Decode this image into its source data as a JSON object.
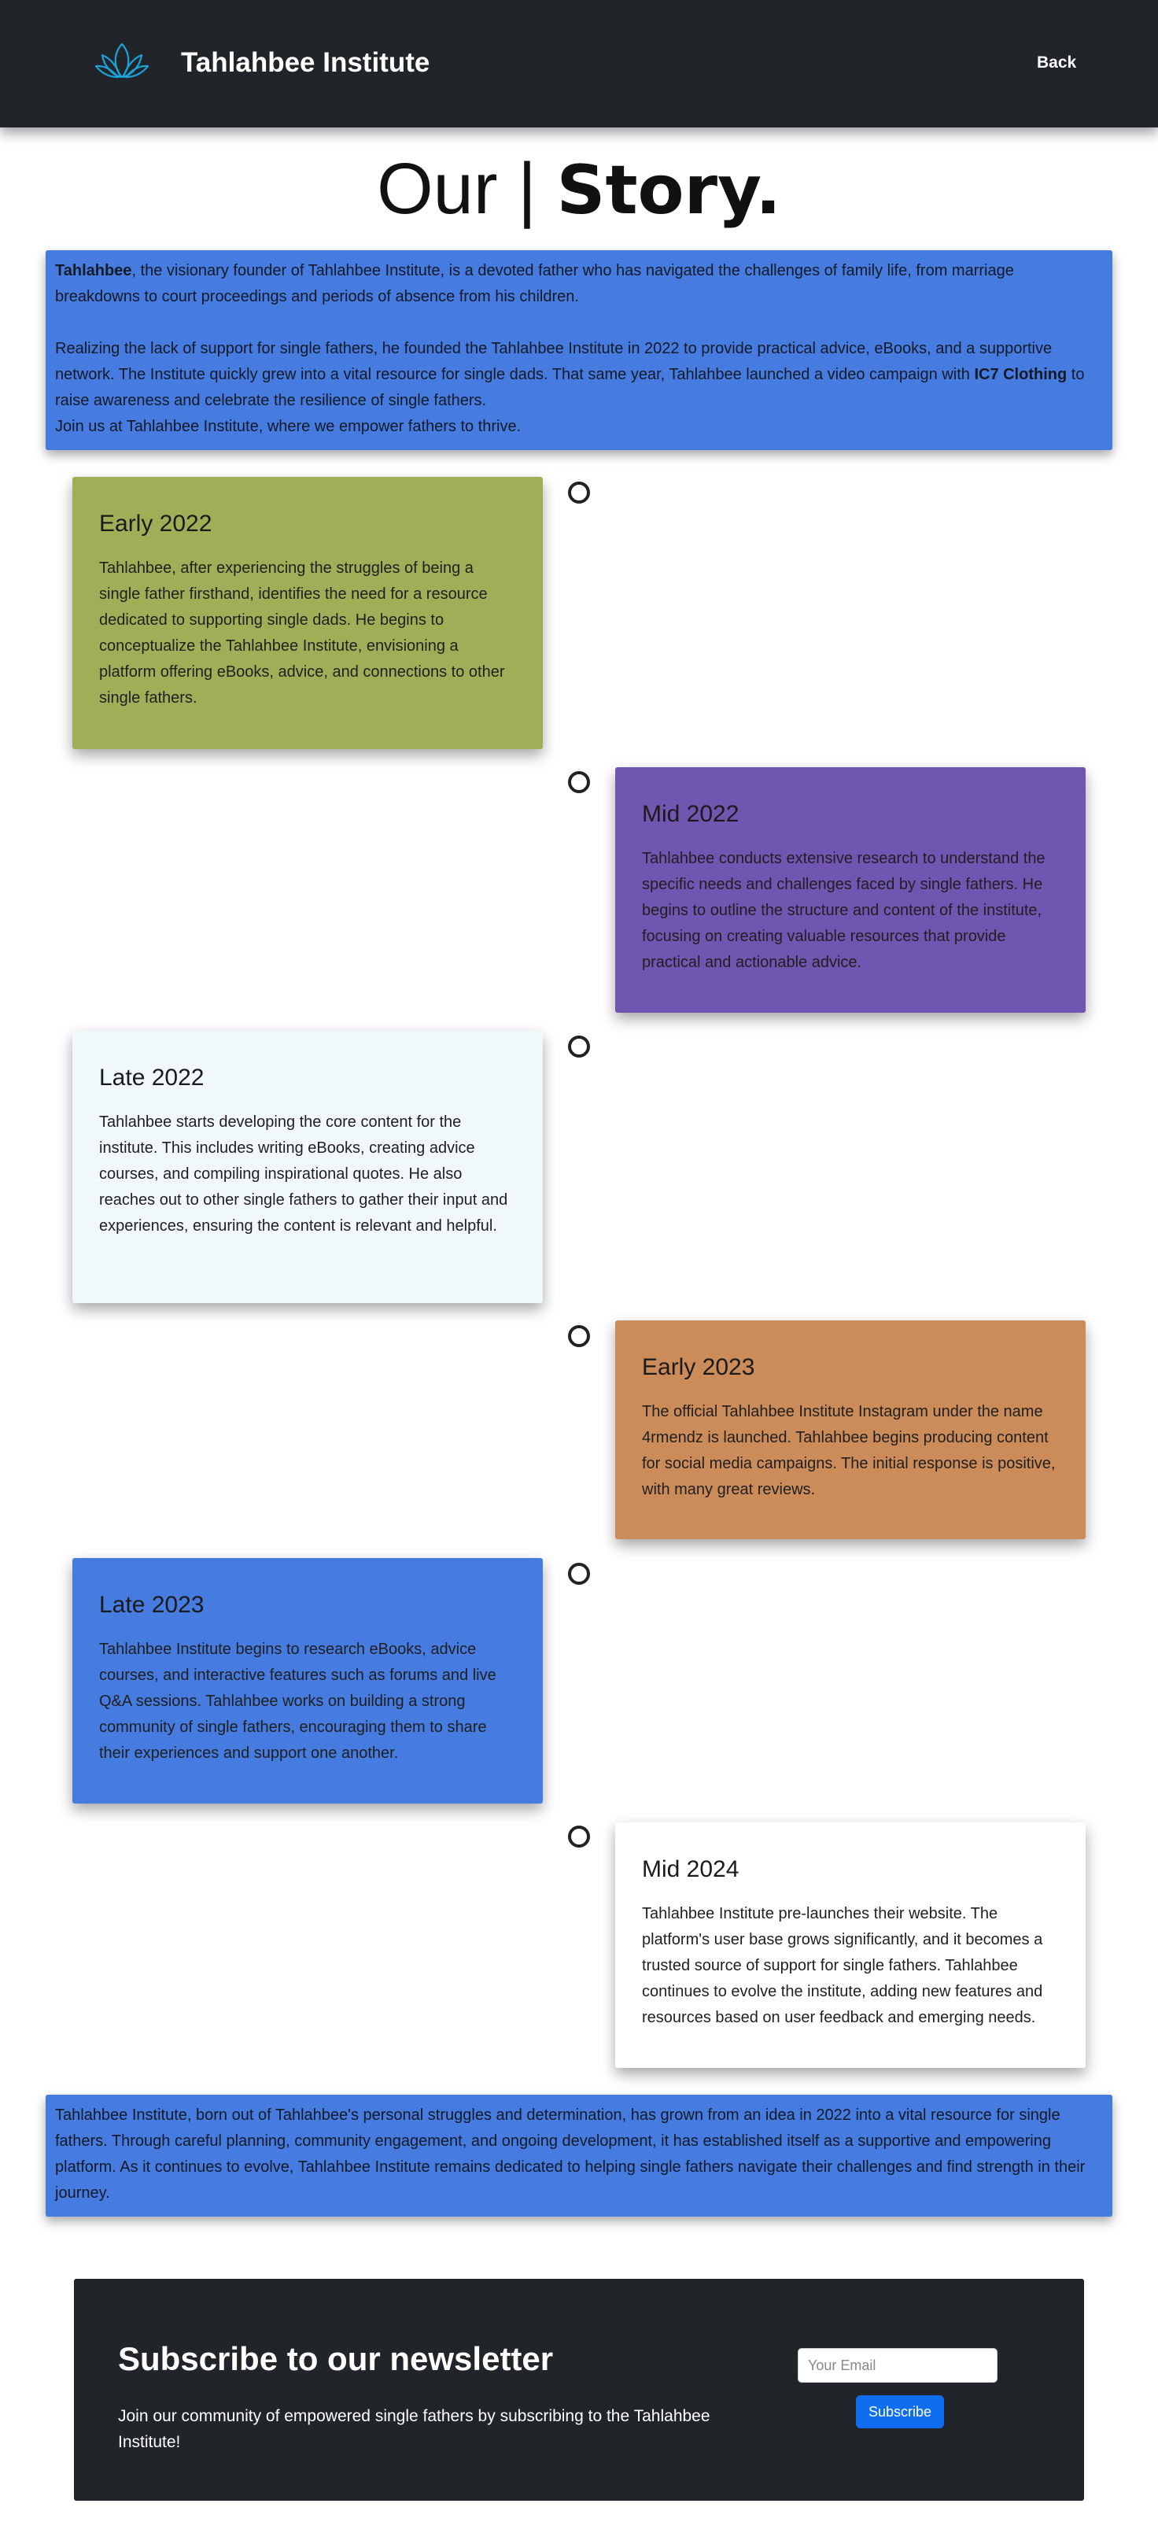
{
  "header": {
    "brand": "Tahlahbee Institute",
    "back_label": "Back",
    "logo_icon": "lotus-icon",
    "logo_color": "#1aa3d9"
  },
  "title": {
    "light": "Our | ",
    "bold": "Story."
  },
  "intro": {
    "founder_name": "Tahlahbee",
    "p1_rest": ", the visionary founder of Tahlahbee Institute, is a devoted father who has navigated the challenges of family life, from marriage breakdowns to court proceedings and periods of absence from his children.",
    "p2_start": "Realizing the lack of support for single fathers, he founded the Tahlahbee Institute in 2022 to provide practical advice, eBooks, and a supportive network. The Institute quickly grew into a vital resource for single dads. That same year, Tahlahbee launched a video campaign with ",
    "p2_brand": "IC7 Clothing",
    "p2_end": " to raise awareness and celebrate the resilience of single fathers.",
    "p3": "Join us at Tahlahbee Institute, where we empower fathers to thrive."
  },
  "timeline": [
    {
      "period": "Early 2022",
      "color": "#a1ae58",
      "text": "Tahlahbee, after experiencing the struggles of being a single father firsthand, identifies the need for a resource dedicated to supporting single dads. He begins to conceptualize the Tahlahbee Institute, envisioning a platform offering eBooks, advice, and connections to other single fathers."
    },
    {
      "period": "Mid 2022",
      "color": "#7055b1",
      "text": "Tahlahbee conducts extensive research to understand the specific needs and challenges faced by single fathers. He begins to outline the structure and content of the institute, focusing on creating valuable resources that provide practical and actionable advice."
    },
    {
      "period": "Late 2022",
      "color": "#f1f8fc",
      "text": "Tahlahbee starts developing the core content for the institute. This includes writing eBooks, creating advice courses, and compiling inspirational quotes. He also reaches out to other single fathers to gather their input and experiences, ensuring the content is relevant and helpful."
    },
    {
      "period": "Early 2023",
      "color": "#cb8c5a",
      "text": "The official Tahlahbee Institute Instagram under the name 4rmendz is launched. Tahlahbee begins producing content for social media campaigns. The initial response is positive, with many great reviews."
    },
    {
      "period": "Late 2023",
      "color": "#467be0",
      "text": "Tahlahbee Institute begins to research eBooks, advice courses, and interactive features such as forums and live Q&A sessions. Tahlahbee works on building a strong community of single fathers, encouraging them to share their experiences and support one another."
    },
    {
      "period": "Mid 2024",
      "color": "#ffffff",
      "text": "Tahlahbee Institute pre-launches their website. The platform's user base grows significantly, and it becomes a trusted source of support for single fathers. Tahlahbee continues to evolve the institute, adding new features and resources based on user feedback and emerging needs."
    }
  ],
  "closing": "Tahlahbee Institute, born out of Tahlahbee's personal struggles and determination, has grown from an idea in 2022 into a vital resource for single fathers. Through careful planning, community engagement, and ongoing development, it has established itself as a supportive and empowering platform. As it continues to evolve, Tahlahbee Institute remains dedicated to helping single fathers navigate their challenges and find strength in their journey.",
  "newsletter": {
    "title": "Subscribe to our newsletter",
    "text": "Join our community of empowered single fathers by subscribing to the Tahlahbee Institute!",
    "email_placeholder": "Your Email",
    "email_value": "",
    "button_label": "Subscribe"
  }
}
